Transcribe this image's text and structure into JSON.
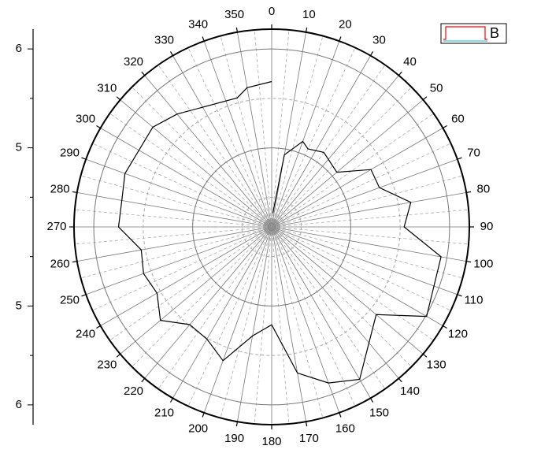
{
  "chart_data": {
    "type": "polar",
    "series": [
      {
        "name": "B",
        "color": "#000000",
        "legend_color": "#ff0000",
        "x": [
          5,
          10,
          20,
          25,
          35,
          50,
          60,
          70,
          80,
          90,
          100,
          120,
          130,
          150,
          160,
          170,
          180,
          190,
          200,
          210,
          220,
          230,
          240,
          250,
          260,
          270,
          280,
          290,
          310,
          320,
          345,
          350,
          360
        ],
        "values": [
          4.34,
          4.94,
          5.12,
          5.07,
          5.12,
          5.06,
          5.36,
          5.36,
          5.63,
          5.54,
          5.94,
          6.01,
          5.58,
          5.98,
          5.88,
          5.7,
          5.19,
          5.32,
          5.64,
          5.51,
          5.49,
          5.67,
          5.54,
          5.58,
          5.54,
          5.75,
          5.74,
          5.78,
          5.77,
          5.69,
          5.55,
          5.63,
          5.67
        ]
      }
    ],
    "rlim": [
      4.2,
      6.2
    ],
    "rticks": [
      5,
      6
    ],
    "rminorticks": [
      4.5,
      5.5
    ],
    "thetaticks": [
      0,
      10,
      20,
      30,
      40,
      50,
      60,
      70,
      80,
      90,
      100,
      110,
      120,
      130,
      140,
      150,
      160,
      170,
      180,
      190,
      200,
      210,
      220,
      230,
      240,
      250,
      260,
      270,
      280,
      290,
      300,
      310,
      320,
      330,
      340,
      350
    ],
    "legend": "top-right",
    "grid": true
  }
}
